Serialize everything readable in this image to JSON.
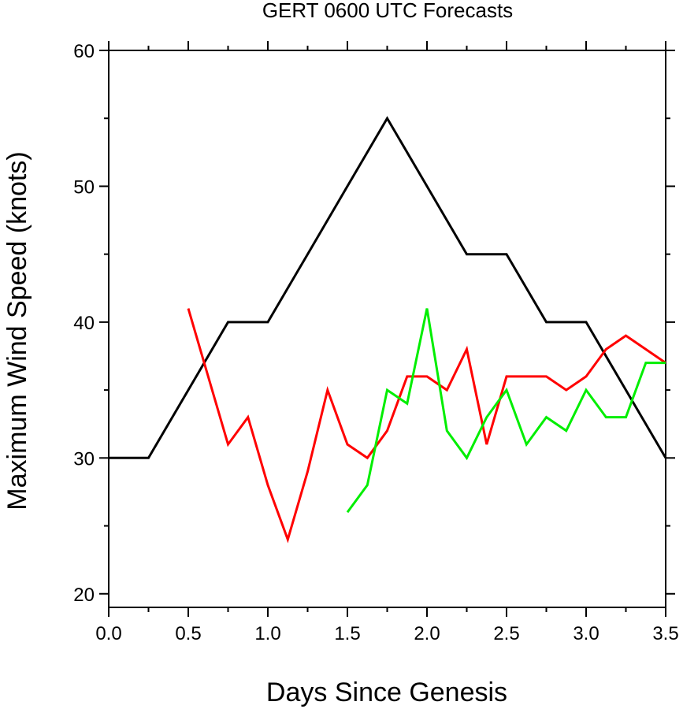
{
  "chart_data": {
    "type": "line",
    "title": "GERT 0600 UTC Forecasts",
    "xlabel": "Days Since Genesis",
    "ylabel": "Maximum Wind Speed (knots)",
    "xlim": [
      0.0,
      3.5
    ],
    "ylim": [
      19,
      60
    ],
    "xticks": [
      "0.0",
      "0.5",
      "1.0",
      "1.5",
      "2.0",
      "2.5",
      "3.0",
      "3.5"
    ],
    "yticks": [
      "20",
      "30",
      "40",
      "50",
      "60"
    ],
    "grid": false,
    "legend": "none",
    "series": [
      {
        "color": "#000000",
        "x": [
          0.0,
          0.25,
          0.5,
          0.75,
          1.0,
          1.25,
          1.5,
          1.75,
          2.0,
          2.25,
          2.5,
          2.75,
          3.0,
          3.25,
          3.5
        ],
        "y": [
          30,
          30,
          35,
          40,
          40,
          45,
          50,
          55,
          50,
          45,
          45,
          40,
          40,
          35,
          30
        ]
      },
      {
        "color": "#ff0000",
        "x": [
          0.5,
          0.75,
          0.875,
          1.0,
          1.125,
          1.25,
          1.375,
          1.5,
          1.625,
          1.75,
          1.875,
          2.0,
          2.125,
          2.25,
          2.375,
          2.5,
          2.625,
          2.75,
          2.875,
          3.0,
          3.125,
          3.25,
          3.375,
          3.5
        ],
        "y": [
          41,
          31,
          33,
          28,
          24,
          29,
          35,
          31,
          30,
          32,
          36,
          36,
          35,
          38,
          31,
          36,
          36,
          36,
          35,
          36,
          38,
          39,
          38,
          37
        ]
      },
      {
        "color": "#00ee00",
        "x": [
          1.5,
          1.625,
          1.75,
          1.875,
          2.0,
          2.125,
          2.25,
          2.375,
          2.5,
          2.625,
          2.75,
          2.875,
          3.0,
          3.125,
          3.25,
          3.375,
          3.5
        ],
        "y": [
          26,
          28,
          35,
          34,
          41,
          32,
          30,
          33,
          35,
          31,
          33,
          32,
          35,
          33,
          33,
          37,
          37
        ]
      }
    ]
  }
}
